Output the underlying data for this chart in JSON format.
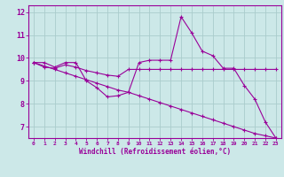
{
  "xlabel": "Windchill (Refroidissement éolien,°C)",
  "bg_color": "#cce8e8",
  "line_color": "#990099",
  "grid_color": "#aacccc",
  "x_data": [
    0,
    1,
    2,
    3,
    4,
    5,
    6,
    7,
    8,
    9,
    10,
    11,
    12,
    13,
    14,
    15,
    16,
    17,
    18,
    19,
    20,
    21,
    22,
    23
  ],
  "series1": [
    9.8,
    9.8,
    9.6,
    9.8,
    9.8,
    9.0,
    8.7,
    8.3,
    8.35,
    8.5,
    9.8,
    9.9,
    9.9,
    9.9,
    11.8,
    11.1,
    10.3,
    10.1,
    9.55,
    9.55,
    8.8,
    8.2,
    7.2,
    6.5
  ],
  "series2": [
    9.8,
    9.6,
    9.55,
    9.7,
    9.6,
    9.45,
    9.35,
    9.25,
    9.2,
    9.5,
    9.5,
    9.5,
    9.5,
    9.5,
    9.5,
    9.5,
    9.5,
    9.5,
    9.5,
    9.5,
    9.5,
    9.5,
    9.5,
    9.5
  ],
  "series3": [
    9.8,
    9.65,
    9.5,
    9.35,
    9.2,
    9.05,
    8.9,
    8.75,
    8.6,
    8.5,
    8.35,
    8.2,
    8.05,
    7.9,
    7.75,
    7.6,
    7.45,
    7.3,
    7.15,
    7.0,
    6.85,
    6.7,
    6.6,
    6.5
  ],
  "ylim": [
    6.5,
    12.3
  ],
  "yticks": [
    7,
    8,
    9,
    10,
    11,
    12
  ],
  "xlim": [
    -0.5,
    23.5
  ]
}
